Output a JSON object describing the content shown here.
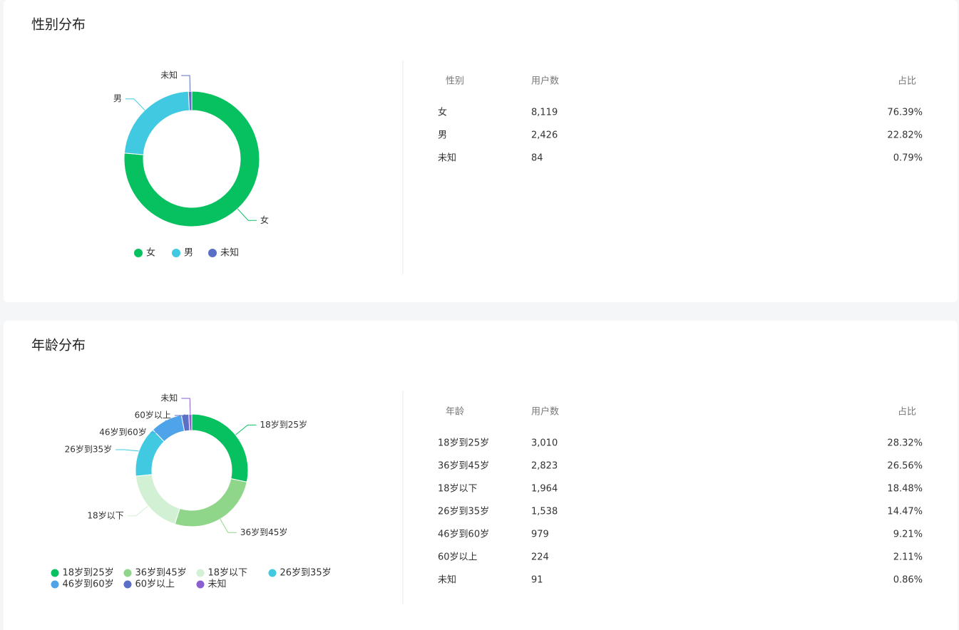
{
  "chart_data": [
    {
      "type": "pie",
      "donut": true,
      "title": "性别分布",
      "categories": [
        "女",
        "男",
        "未知"
      ],
      "values": [
        8119,
        2426,
        84
      ],
      "colors": [
        "#07c160",
        "#40c9e0",
        "#5b6fc7"
      ]
    },
    {
      "type": "pie",
      "donut": true,
      "title": "年龄分布",
      "categories": [
        "18岁到25岁",
        "36岁到45岁",
        "18岁以下",
        "26岁到35岁",
        "46岁到60岁",
        "60岁以上",
        "未知"
      ],
      "values": [
        3010,
        2823,
        1964,
        1538,
        979,
        224,
        91
      ],
      "colors": [
        "#07c160",
        "#8fd68a",
        "#d2f0d4",
        "#40c9e0",
        "#4fa3e8",
        "#5b6fc7",
        "#8b5fcf"
      ]
    }
  ],
  "tables": [
    {
      "header": [
        "性别",
        "用户数",
        "占比"
      ],
      "rows": [
        [
          "女",
          "8,119",
          "76.39%"
        ],
        [
          "男",
          "2,426",
          "22.82%"
        ],
        [
          "未知",
          "84",
          "0.79%"
        ]
      ]
    },
    {
      "header": [
        "年龄",
        "用户数",
        "占比"
      ],
      "rows": [
        [
          "18岁到25岁",
          "3,010",
          "28.32%"
        ],
        [
          "36岁到45岁",
          "2,823",
          "26.56%"
        ],
        [
          "18岁以下",
          "1,964",
          "18.48%"
        ],
        [
          "26岁到35岁",
          "1,538",
          "14.47%"
        ],
        [
          "46岁到60岁",
          "979",
          "9.21%"
        ],
        [
          "60岁以上",
          "224",
          "2.11%"
        ],
        [
          "未知",
          "91",
          "0.86%"
        ]
      ]
    }
  ]
}
